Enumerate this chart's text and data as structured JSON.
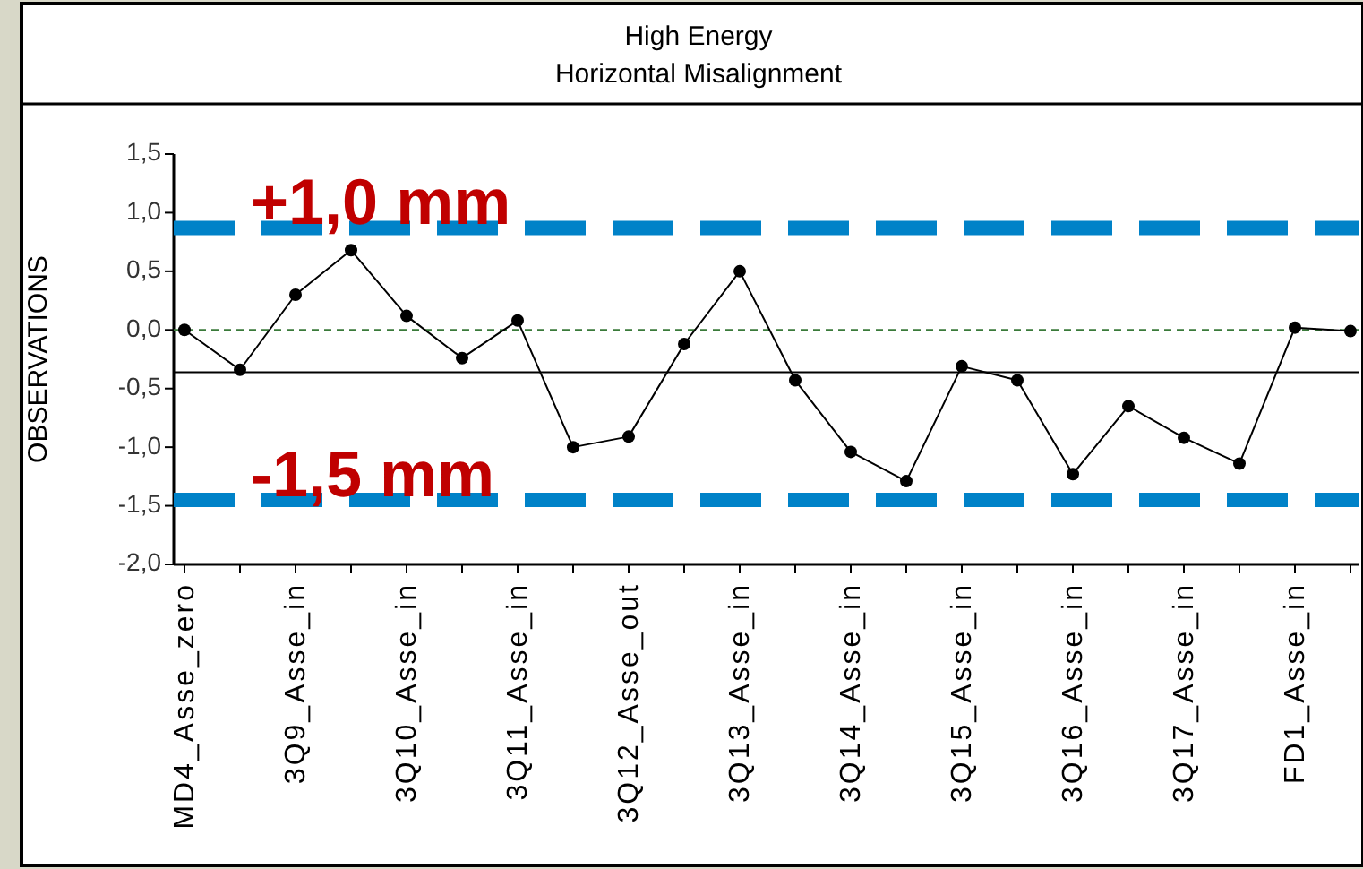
{
  "chart_data": {
    "type": "line",
    "title": "High Energy\nHorizontal Misalignment",
    "ylabel": "OBSERVATIONS",
    "categories": [
      "MD4_Asse_zero",
      null,
      "3Q9_Asse_in",
      null,
      "3Q10_Asse_in",
      null,
      "3Q11_Asse_in",
      null,
      "3Q12_Asse_out",
      null,
      "3Q13_Asse_in",
      null,
      "3Q14_Asse_in",
      null,
      "3Q15_Asse_in",
      null,
      "3Q16_Asse_in",
      null,
      "3Q17_Asse_in",
      null,
      "FD1_Asse_in",
      null
    ],
    "series": [
      {
        "color": "#000000",
        "values": [
          0,
          -0.34,
          0.3,
          0.68,
          0.12,
          -0.24,
          0.08,
          -1.0,
          -0.91,
          -0.12,
          0.5,
          -0.43,
          -1.04,
          -1.29,
          -0.31,
          -0.43,
          -1.23,
          -0.65,
          -0.92,
          -1.14,
          0.02,
          -0.01
        ]
      }
    ],
    "marker": "circle",
    "line_style": "solid",
    "ylim": [
      -2,
      1.5
    ],
    "yticks": [
      {
        "value": -2,
        "label": "-2,0"
      },
      {
        "value": -1.5,
        "label": "-1,5"
      },
      {
        "value": -1,
        "label": "-1,0"
      },
      {
        "value": -0.5,
        "label": "-0,5"
      },
      {
        "value": 0,
        "label": "0,0"
      },
      {
        "value": 0.5,
        "label": "0,5"
      },
      {
        "value": 1,
        "label": "1,0"
      },
      {
        "value": 1.5,
        "label": "1,5"
      }
    ],
    "ref_lines": [
      {
        "axis": "y",
        "value": 0,
        "color": "#3a7a3a",
        "line_style": "dashed"
      },
      {
        "axis": "y",
        "value": -0.36,
        "color": "#000000",
        "line_style": "solid"
      },
      {
        "axis": "y",
        "value": 0.87,
        "label": "+1,0 mm",
        "color": "#0082c8",
        "line_style": "dashed"
      },
      {
        "axis": "y",
        "value": -1.45,
        "label": "-1,5 mm",
        "color": "#0082c8",
        "line_style": "dashed"
      }
    ],
    "grid": false
  }
}
